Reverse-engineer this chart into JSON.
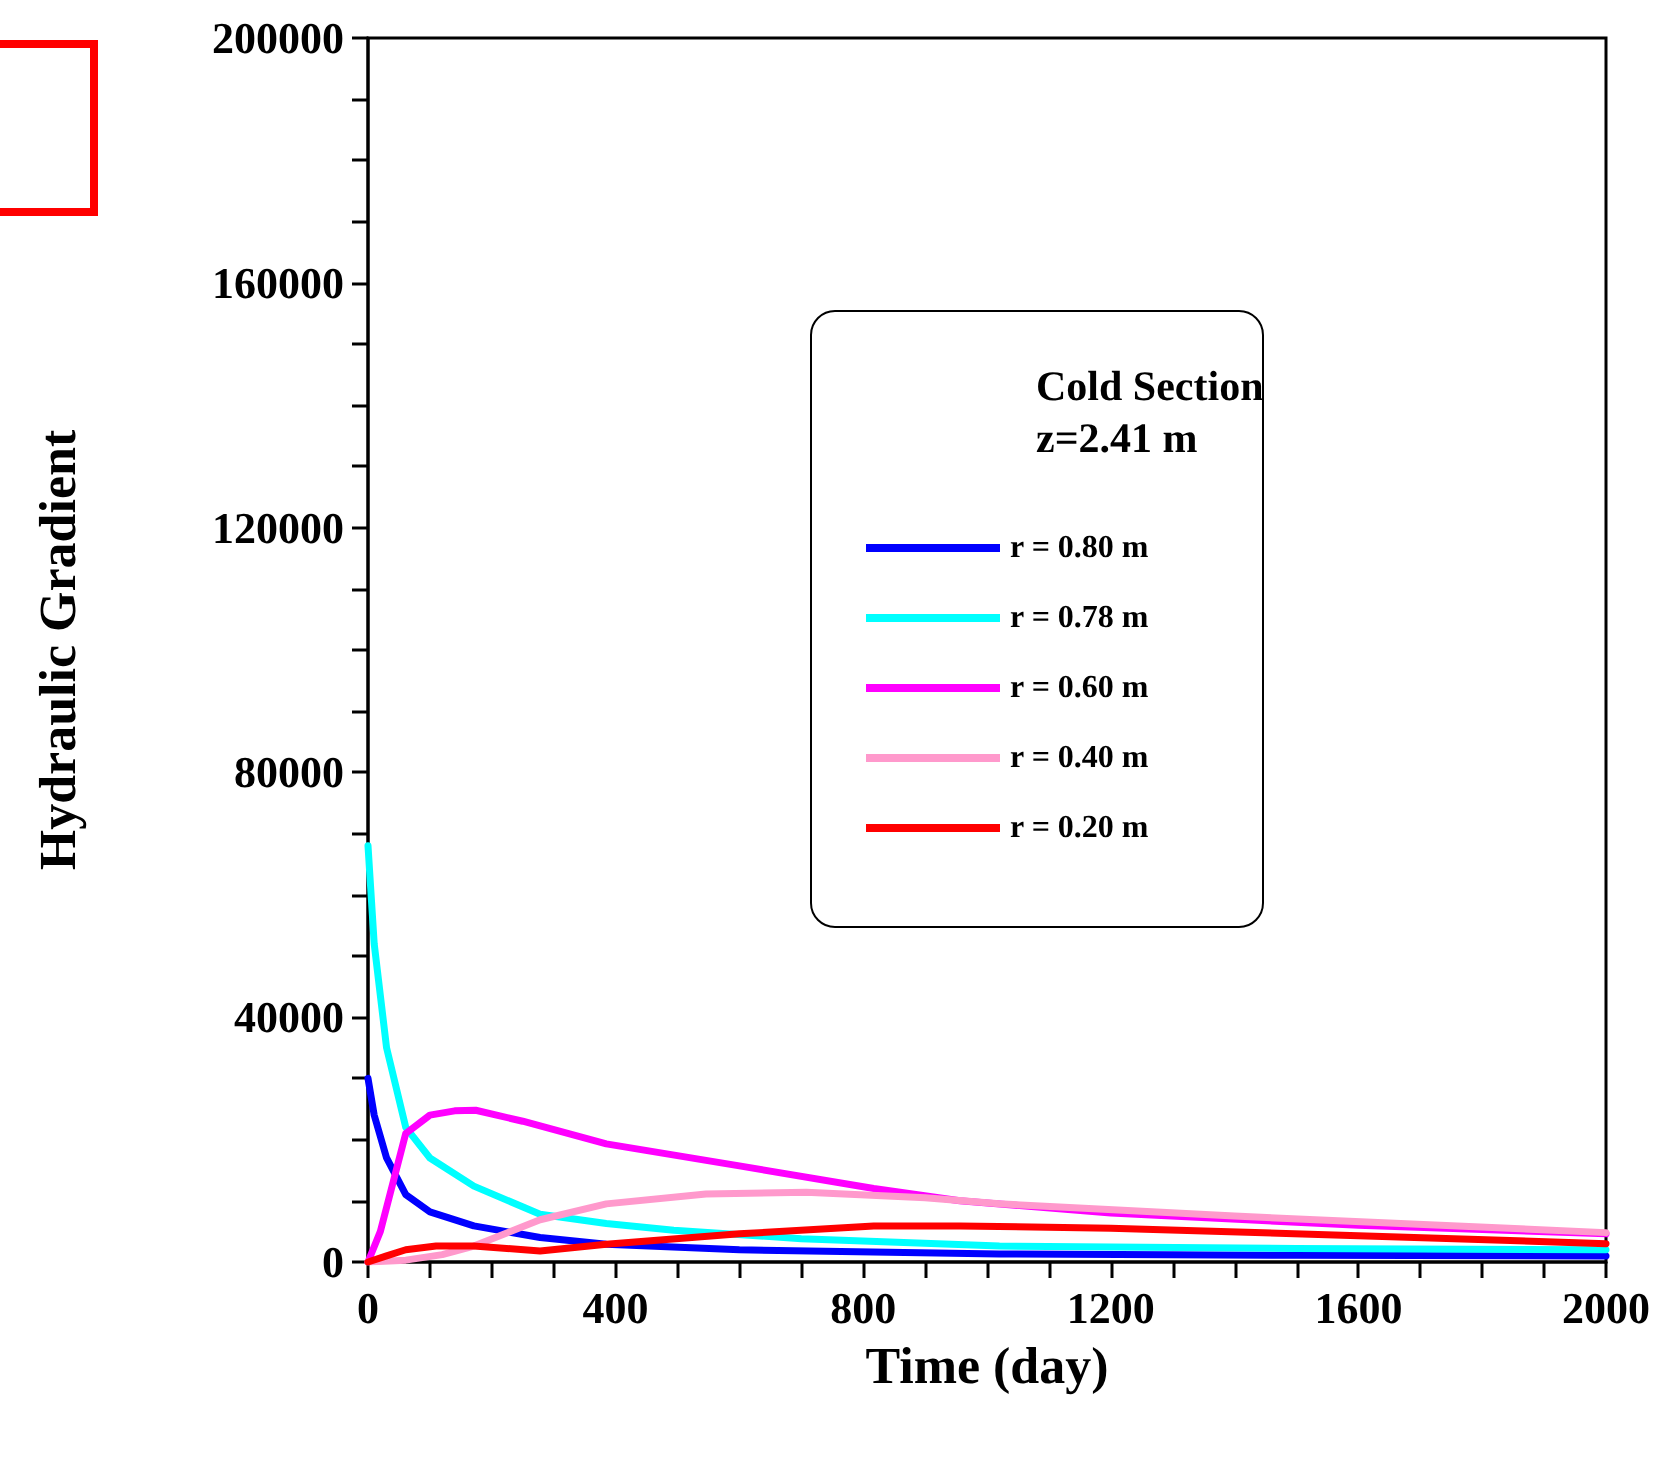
{
  "chart_data": {
    "type": "line",
    "xlabel": "Time (day)",
    "ylabel": "Hydraulic Gradient",
    "legend_title": "Cold Section\nz=2.41 m",
    "legend": "right",
    "grid": false,
    "marker": "none",
    "line_style": "solid",
    "xlim": [
      0,
      2000
    ],
    "ylim": [
      0,
      200000
    ],
    "xticks": [
      0,
      {
        "value": 100,
        "label": null
      },
      {
        "value": 200,
        "label": null
      },
      {
        "value": 300,
        "label": null
      },
      400,
      {
        "value": 500,
        "label": null
      },
      {
        "value": 600,
        "label": null
      },
      {
        "value": 700,
        "label": null
      },
      800,
      {
        "value": 900,
        "label": null
      },
      {
        "value": 1000,
        "label": null
      },
      {
        "value": 1100,
        "label": null
      },
      1200,
      {
        "value": 1300,
        "label": null
      },
      {
        "value": 1400,
        "label": null
      },
      {
        "value": 1500,
        "label": null
      },
      1600,
      {
        "value": 1700,
        "label": null
      },
      {
        "value": 1800,
        "label": null
      },
      {
        "value": 1900,
        "label": null
      },
      2000
    ],
    "yticks": [
      0,
      {
        "value": 10000,
        "label": null
      },
      {
        "value": 20000,
        "label": null
      },
      {
        "value": 30000,
        "label": null
      },
      40000,
      {
        "value": 50000,
        "label": null
      },
      {
        "value": 60000,
        "label": null
      },
      {
        "value": 70000,
        "label": null
      },
      80000,
      {
        "value": 90000,
        "label": null
      },
      {
        "value": 100000,
        "label": null
      },
      {
        "value": 110000,
        "label": null
      },
      120000,
      {
        "value": 130000,
        "label": null
      },
      {
        "value": 140000,
        "label": null
      },
      {
        "value": 150000,
        "label": null
      },
      160000,
      {
        "value": 170000,
        "label": null
      },
      {
        "value": 180000,
        "label": null
      },
      {
        "value": 190000,
        "label": null
      },
      200000
    ],
    "series": [
      {
        "name": "r = 0.80 m",
        "color": "#0000ff",
        "x": [
          0,
          10,
          30,
          61,
          100,
          171,
          278,
          385,
          600,
          1020,
          1500,
          2000
        ],
        "values": [
          30000,
          24000,
          17000,
          11000,
          8200,
          5900,
          4000,
          2900,
          2000,
          1300,
          1100,
          1000
        ]
      },
      {
        "name": "r = 0.78 m",
        "color": "#00ffff",
        "x": [
          0,
          10,
          30,
          61,
          100,
          171,
          278,
          385,
          494,
          700,
          1020,
          1500,
          2000
        ],
        "values": [
          68000,
          52000,
          35000,
          22000,
          17000,
          12400,
          7800,
          6300,
          5200,
          3800,
          2600,
          2200,
          2000
        ]
      },
      {
        "name": "r = 0.60 m",
        "color": "#ff00ff",
        "x": [
          0,
          20,
          61,
          100,
          140,
          174,
          250,
          385,
          600,
          817,
          956,
          1200,
          1600,
          2000
        ],
        "values": [
          0,
          5000,
          21000,
          24000,
          24700,
          24800,
          23000,
          19300,
          15700,
          12000,
          10000,
          8000,
          6000,
          4600
        ]
      },
      {
        "name": "r = 0.40 m",
        "color": "#ff99cc",
        "x": [
          0,
          61,
          120,
          171,
          278,
          385,
          546,
          708,
          900,
          1020,
          1400,
          2000
        ],
        "values": [
          0,
          300,
          1200,
          2600,
          6900,
          9500,
          11100,
          11400,
          10500,
          9500,
          7500,
          4800
        ]
      },
      {
        "name": "r = 0.20 m",
        "color": "#ff0000",
        "x": [
          0,
          30,
          61,
          110,
          171,
          278,
          385,
          600,
          817,
          956,
          1200,
          1600,
          2000
        ],
        "values": [
          0,
          1000,
          2000,
          2600,
          2600,
          1800,
          2900,
          4600,
          5900,
          5900,
          5500,
          4300,
          3000
        ]
      }
    ]
  }
}
